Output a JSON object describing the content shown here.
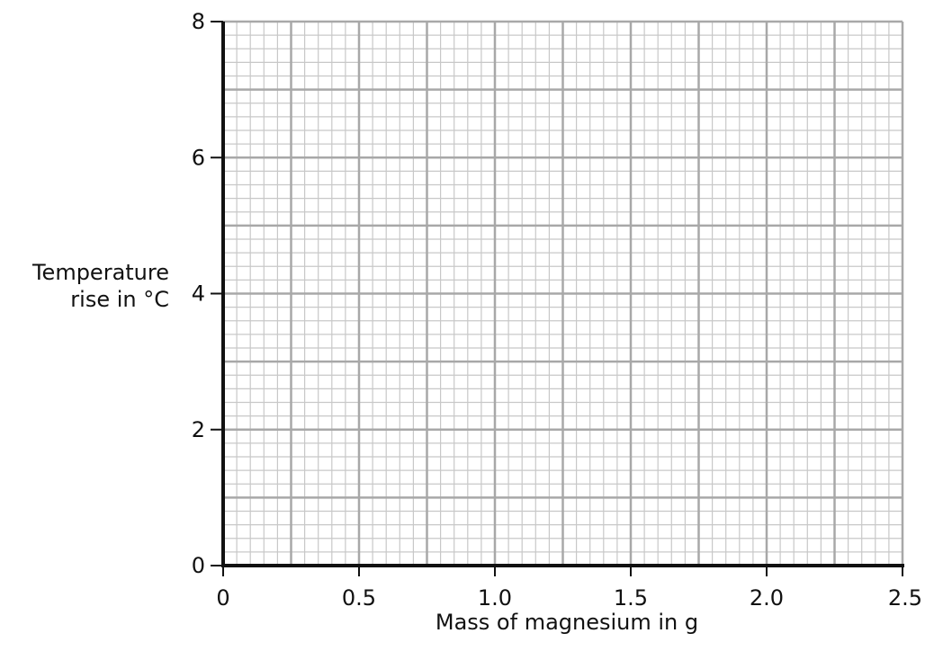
{
  "chart_data": {
    "type": "scatter",
    "title": "",
    "xlabel": "Mass of magnesium in g",
    "ylabel_lines": [
      "Temperature",
      "rise in °C"
    ],
    "xlim": [
      0,
      2.5
    ],
    "ylim": [
      0,
      8
    ],
    "x_ticks": [
      0,
      0.5,
      1.0,
      1.5,
      2.0,
      2.5
    ],
    "x_tick_labels": [
      "0",
      "0.5",
      "1.0",
      "1.5",
      "2.0",
      "2.5"
    ],
    "y_ticks": [
      0,
      2,
      4,
      6,
      8
    ],
    "y_tick_labels": [
      "0",
      "2",
      "4",
      "6",
      "8"
    ],
    "grid": true,
    "grid_minor_x_step": 0.05,
    "grid_minor_y_step": 0.2,
    "grid_major_x_step": 0.25,
    "grid_major_y_step": 1,
    "series": []
  },
  "colors": {
    "grid_minor": "#c8c8c8",
    "grid_major": "#a8a8a8",
    "axis": "#111111"
  }
}
